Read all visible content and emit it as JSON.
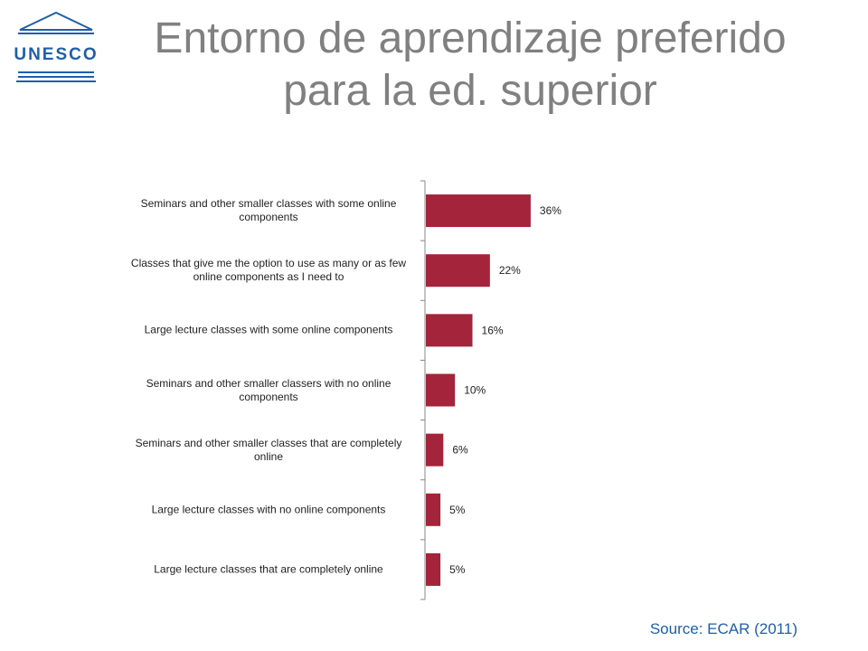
{
  "logo_text": "UNESCO",
  "source": "Source: ECAR (2011)",
  "chart_data": {
    "type": "bar",
    "orientation": "horizontal",
    "title": "Entorno de aprendizaje preferido para la ed. superior",
    "categories": [
      "Seminars and other smaller classes with some online components",
      "Classes that give me the option to use as many or as few online components as I need to",
      "Large lecture classes with some online components",
      "Seminars and other smaller classers with no online components",
      "Seminars and other smaller classes that are completely online",
      "Large lecture classes with no online components",
      "Large lecture classes that are completely online"
    ],
    "values": [
      36,
      22,
      16,
      10,
      6,
      5,
      5
    ],
    "value_labels": [
      "36%",
      "22%",
      "16%",
      "10%",
      "6%",
      "5%",
      "5%"
    ],
    "color": "#a3243b"
  }
}
